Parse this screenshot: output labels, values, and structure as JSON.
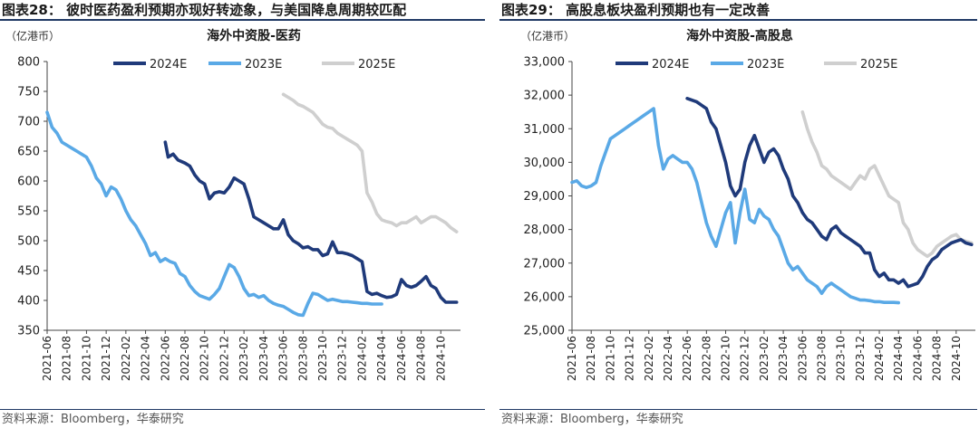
{
  "figures": [
    {
      "title": "图表28：  彼时医药盈利预期亦现好转迹象，与美国降息周期较匹配",
      "source": "资料来源：Bloomberg，华泰研究"
    },
    {
      "title": "图表29：  高股息板块盈利预期也有一定改善",
      "source": "资料来源：Bloomberg，华泰研究"
    }
  ],
  "colors": {
    "2024E": "#1f3a7a",
    "2023E": "#5aa9e6",
    "2025E": "#cfcfcf",
    "rule": "#1f3864"
  },
  "chart_data": [
    {
      "type": "line",
      "title": "海外中资股-医药",
      "unit_label": "（亿港币）",
      "ylim": [
        350,
        800
      ],
      "yticks": [
        350,
        400,
        450,
        500,
        550,
        600,
        650,
        700,
        750,
        800
      ],
      "ytick_labels": [
        "350",
        "400",
        "450",
        "500",
        "550",
        "600",
        "650",
        "700",
        "750",
        "800"
      ],
      "xlim": [
        0,
        42
      ],
      "xtick_labels": [
        "2021-06",
        "2021-08",
        "2021-10",
        "2021-12",
        "2022-02",
        "2022-04",
        "2022-06",
        "2022-08",
        "2022-10",
        "2022-12",
        "2023-02",
        "2023-04",
        "2023-06",
        "2023-08",
        "2023-10",
        "2023-12",
        "2024-02",
        "2024-04",
        "2024-06",
        "2024-08",
        "2024-10"
      ],
      "grid": false,
      "legend": "top",
      "series": [
        {
          "name": "2024E",
          "color": "#1f3a7a",
          "x": [
            12,
            12.3,
            12.8,
            13.3,
            14,
            14.5,
            15,
            15.5,
            16,
            16.5,
            17,
            17.5,
            18,
            18.5,
            19,
            19.5,
            20,
            20.5,
            21,
            21.5,
            22,
            22.5,
            23,
            23.5,
            24,
            24.5,
            25,
            25.5,
            26,
            26.5,
            27,
            27.5,
            28,
            28.5,
            29,
            29.5,
            30,
            30.5,
            31,
            31.5,
            32,
            32.5,
            33,
            33.5,
            34,
            34.5,
            35,
            35.5,
            36,
            36.5,
            37,
            37.5,
            38,
            38.5,
            39,
            39.5,
            40,
            40.5,
            41,
            41.6
          ],
          "y": [
            665,
            640,
            645,
            635,
            630,
            625,
            610,
            600,
            595,
            570,
            580,
            582,
            580,
            590,
            605,
            600,
            595,
            570,
            540,
            535,
            530,
            525,
            520,
            520,
            535,
            510,
            500,
            495,
            488,
            490,
            485,
            485,
            475,
            478,
            498,
            480,
            480,
            478,
            475,
            470,
            465,
            415,
            410,
            412,
            408,
            405,
            406,
            410,
            435,
            425,
            422,
            425,
            432,
            440,
            425,
            420,
            405,
            397,
            397,
            397
          ]
        },
        {
          "name": "2023E",
          "color": "#5aa9e6",
          "x": [
            0,
            0.5,
            1,
            1.5,
            2,
            2.5,
            3,
            3.5,
            4,
            4.5,
            5,
            5.5,
            6,
            6.5,
            7,
            7.5,
            8,
            8.5,
            9,
            9.5,
            10,
            10.5,
            11,
            11.5,
            12,
            12.5,
            13,
            13.5,
            14,
            14.5,
            15,
            15.5,
            16,
            16.5,
            17,
            17.5,
            18,
            18.5,
            19,
            19.5,
            20,
            20.5,
            21,
            21.5,
            22,
            22.5,
            23,
            23.5,
            24,
            24.5,
            25,
            25.5,
            26,
            26.5,
            27,
            27.5,
            28,
            28.5,
            29,
            29.5,
            30,
            30.5,
            31,
            31.5,
            32,
            32.5,
            33,
            33.5,
            34
          ],
          "y": [
            715,
            690,
            680,
            665,
            660,
            655,
            650,
            645,
            640,
            625,
            605,
            595,
            575,
            590,
            585,
            570,
            550,
            535,
            525,
            510,
            495,
            475,
            480,
            465,
            470,
            465,
            462,
            445,
            440,
            425,
            415,
            408,
            405,
            402,
            410,
            420,
            440,
            460,
            455,
            440,
            420,
            408,
            410,
            405,
            408,
            400,
            395,
            392,
            390,
            385,
            380,
            376,
            375,
            395,
            412,
            410,
            405,
            400,
            402,
            400,
            398,
            398,
            397,
            396,
            395,
            395,
            394,
            394,
            394
          ]
        },
        {
          "name": "2025E",
          "color": "#cfcfcf",
          "x": [
            24,
            24.5,
            25,
            25.5,
            26,
            26.5,
            27,
            27.5,
            28,
            28.5,
            29,
            29.5,
            30,
            30.5,
            31,
            31.5,
            32,
            32.5,
            33,
            33.5,
            34,
            34.5,
            35,
            35.5,
            36,
            36.5,
            37,
            37.5,
            38,
            38.5,
            39,
            39.5,
            40,
            40.5,
            41,
            41.6
          ],
          "y": [
            745,
            740,
            735,
            728,
            725,
            720,
            715,
            705,
            695,
            690,
            688,
            680,
            675,
            670,
            665,
            660,
            650,
            580,
            565,
            545,
            535,
            532,
            530,
            525,
            530,
            530,
            535,
            540,
            530,
            535,
            540,
            540,
            535,
            530,
            522,
            515
          ]
        }
      ]
    },
    {
      "type": "line",
      "title": "海外中资股-高股息",
      "unit_label": "（亿港币）",
      "ylim": [
        25000,
        33000
      ],
      "yticks": [
        25000,
        26000,
        27000,
        28000,
        29000,
        30000,
        31000,
        32000,
        33000
      ],
      "ytick_labels": [
        "25,000",
        "26,000",
        "27,000",
        "28,000",
        "29,000",
        "30,000",
        "31,000",
        "32,000",
        "33,000"
      ],
      "xlim": [
        0,
        42
      ],
      "xtick_labels": [
        "2021-06",
        "2021-08",
        "2021-10",
        "2021-12",
        "2022-02",
        "2022-04",
        "2022-06",
        "2022-08",
        "2022-10",
        "2022-12",
        "2023-02",
        "2023-04",
        "2023-06",
        "2023-08",
        "2023-10",
        "2023-12",
        "2024-02",
        "2024-04",
        "2024-06",
        "2024-08",
        "2024-10"
      ],
      "grid": false,
      "legend": "top",
      "series": [
        {
          "name": "2024E",
          "color": "#1f3a7a",
          "x": [
            12,
            12.5,
            13,
            13.5,
            14,
            14.5,
            15,
            15.5,
            16,
            16.5,
            17,
            17.5,
            18,
            18.5,
            19,
            19.5,
            20,
            20.5,
            21,
            21.5,
            22,
            22.5,
            23,
            23.5,
            24,
            24.5,
            25,
            25.5,
            26,
            26.5,
            27,
            27.5,
            28,
            28.5,
            29,
            29.5,
            30,
            30.5,
            31,
            31.5,
            32,
            32.5,
            33,
            33.5,
            34,
            34.5,
            35,
            35.5,
            36,
            36.5,
            37,
            37.5,
            38,
            38.5,
            39,
            39.5,
            40,
            40.5,
            41,
            41.6
          ],
          "y": [
            31900,
            31850,
            31800,
            31700,
            31600,
            31200,
            31000,
            30500,
            30000,
            29300,
            29000,
            29200,
            30000,
            30500,
            30800,
            30400,
            30000,
            30300,
            30400,
            30200,
            29800,
            29500,
            29000,
            28800,
            28500,
            28300,
            28200,
            28000,
            27800,
            27700,
            28000,
            28100,
            27900,
            27800,
            27700,
            27600,
            27500,
            27300,
            27300,
            26800,
            26600,
            26700,
            26500,
            26500,
            26400,
            26500,
            26300,
            26350,
            26400,
            26600,
            26900,
            27100,
            27200,
            27400,
            27500,
            27600,
            27650,
            27700,
            27600,
            27550
          ]
        },
        {
          "name": "2023E",
          "color": "#5aa9e6",
          "x": [
            0,
            0.5,
            1,
            1.5,
            2,
            2.5,
            3,
            3.5,
            4,
            4.5,
            5,
            5.5,
            6,
            6.5,
            7,
            7.5,
            8,
            8.5,
            9,
            9.5,
            10,
            10.5,
            11,
            11.5,
            12,
            12.5,
            13,
            13.5,
            14,
            14.5,
            15,
            15.5,
            16,
            16.5,
            17,
            17.5,
            18,
            18.5,
            19,
            19.5,
            20,
            20.5,
            21,
            21.5,
            22,
            22.5,
            23,
            23.5,
            24,
            24.5,
            25,
            25.5,
            26,
            26.5,
            27,
            27.5,
            28,
            28.5,
            29,
            29.5,
            30,
            30.5,
            31,
            31.5,
            32,
            32.5,
            33,
            33.5,
            34
          ],
          "y": [
            29400,
            29450,
            29300,
            29250,
            29300,
            29400,
            29900,
            30300,
            30700,
            30800,
            30900,
            31000,
            31100,
            31200,
            31300,
            31400,
            31500,
            31600,
            30500,
            29800,
            30100,
            30200,
            30100,
            30000,
            30000,
            29800,
            29400,
            28800,
            28200,
            27800,
            27500,
            28000,
            28500,
            28800,
            27600,
            28500,
            29200,
            28300,
            28200,
            28600,
            28400,
            28300,
            28000,
            27800,
            27400,
            27000,
            26800,
            26900,
            26700,
            26500,
            26400,
            26300,
            26100,
            26300,
            26400,
            26300,
            26200,
            26100,
            26000,
            25950,
            25900,
            25900,
            25880,
            25850,
            25850,
            25830,
            25830,
            25830,
            25820
          ]
        },
        {
          "name": "2025E",
          "color": "#cfcfcf",
          "x": [
            24,
            24.5,
            25,
            25.5,
            26,
            26.5,
            27,
            27.5,
            28,
            28.5,
            29,
            29.5,
            30,
            30.5,
            31,
            31.5,
            32,
            32.5,
            33,
            33.5,
            34,
            34.5,
            35,
            35.5,
            36,
            36.5,
            37,
            37.5,
            38,
            38.5,
            39,
            39.5,
            40,
            40.5,
            41,
            41.6
          ],
          "y": [
            31500,
            31000,
            30600,
            30300,
            29900,
            29800,
            29600,
            29500,
            29400,
            29300,
            29200,
            29400,
            29600,
            29500,
            29800,
            29900,
            29600,
            29300,
            29000,
            28900,
            28800,
            28200,
            28000,
            27600,
            27400,
            27300,
            27200,
            27300,
            27500,
            27600,
            27700,
            27800,
            27850,
            27700,
            27650,
            27600
          ]
        }
      ]
    }
  ]
}
